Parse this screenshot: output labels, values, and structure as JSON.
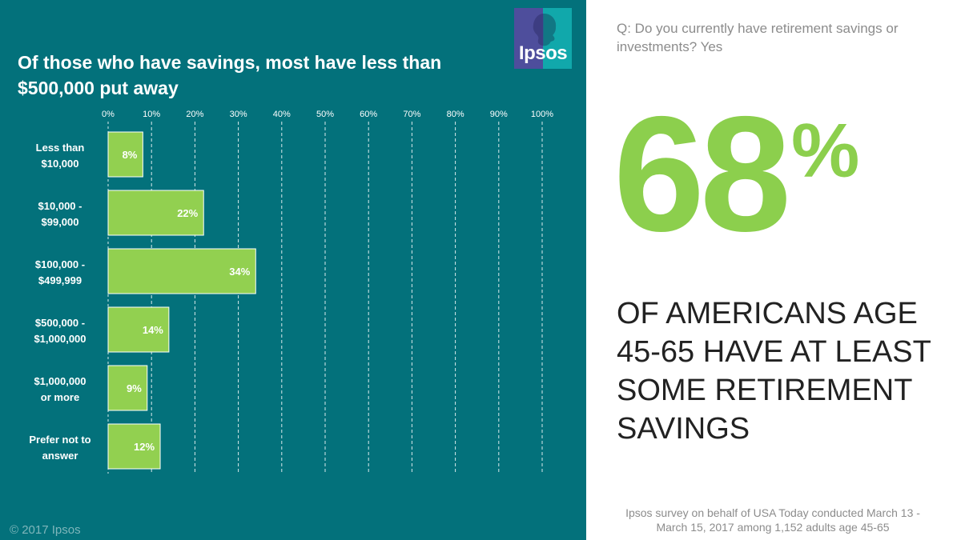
{
  "title": "Of those who have savings, most have less than $500,000 put away",
  "logo_text": "Ipsos",
  "copyright": "© 2017 Ipsos",
  "question": "Q: Do you currently have retirement savings or investments? Yes",
  "headline": {
    "value": "68",
    "suffix": "%"
  },
  "statement": "OF AMERICANS AGE 45-65 HAVE AT LEAST SOME RETIREMENT SAVINGS",
  "source": "Ipsos survey on behalf of USA Today conducted March 13 - March 15, 2017 among 1,152 adults age 45-65",
  "colors": {
    "panel": "#03717b",
    "bar": "#92d050",
    "big_number": "#8ccf4d",
    "text_dark": "#222222",
    "text_gray": "#8c8c8c"
  },
  "chart_data": {
    "type": "bar",
    "orientation": "horizontal",
    "categories": [
      [
        "Less than",
        "$10,000"
      ],
      [
        "$10,000 -",
        "$99,000"
      ],
      [
        "$100,000 -",
        "$499,999"
      ],
      [
        "$500,000 -",
        "$1,000,000"
      ],
      [
        "$1,000,000",
        "or more"
      ],
      [
        "Prefer not to",
        "answer"
      ]
    ],
    "values": [
      8,
      22,
      34,
      14,
      9,
      12
    ],
    "data_labels": [
      "8%",
      "22%",
      "34%",
      "14%",
      "9%",
      "12%"
    ],
    "xlim": [
      0,
      100
    ],
    "ticks": [
      0,
      10,
      20,
      30,
      40,
      50,
      60,
      70,
      80,
      90,
      100
    ],
    "tick_labels": [
      "0%",
      "10%",
      "20%",
      "30%",
      "40%",
      "50%",
      "60%",
      "70%",
      "80%",
      "90%",
      "100%"
    ],
    "tick_position": "top",
    "grid": true,
    "grid_style": "dashed-vertical",
    "legend": "none"
  }
}
